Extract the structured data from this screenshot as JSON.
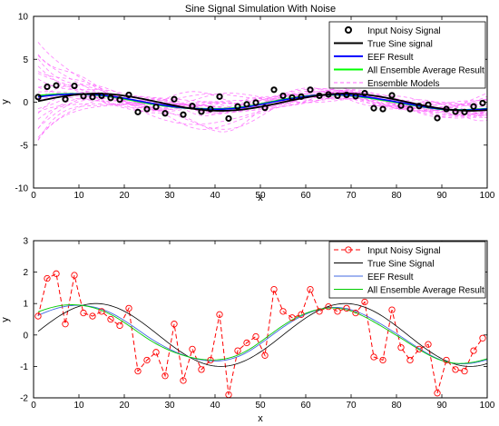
{
  "chart_data": [
    {
      "type": "line",
      "title": "Sine Signal Simulation With Noise",
      "xlabel": "x",
      "ylabel": "y",
      "xlim": [
        0,
        100
      ],
      "ylim": [
        -10,
        10
      ],
      "xticks": [
        0,
        10,
        20,
        30,
        40,
        50,
        60,
        70,
        80,
        90,
        100
      ],
      "yticks": [
        -10,
        -5,
        0,
        5,
        10
      ],
      "grid": false,
      "legend_position": "top-right",
      "sine": {
        "amplitude": 1,
        "period": 55,
        "phase_shift_x": 0
      },
      "noisy_x": [
        1,
        3,
        5,
        7,
        9,
        11,
        13,
        15,
        17,
        19,
        21,
        23,
        25,
        27,
        29,
        31,
        33,
        35,
        37,
        39,
        41,
        43,
        45,
        47,
        49,
        51,
        53,
        55,
        57,
        59,
        61,
        63,
        65,
        67,
        69,
        71,
        73,
        75,
        77,
        79,
        81,
        83,
        85,
        87,
        89,
        91,
        93,
        95,
        97,
        99
      ],
      "noisy_y": [
        0.6,
        1.8,
        1.95,
        0.35,
        1.9,
        0.7,
        0.6,
        0.75,
        0.5,
        0.3,
        0.85,
        -1.15,
        -0.8,
        -0.55,
        -1.3,
        0.35,
        -1.45,
        -0.45,
        -1.1,
        -0.8,
        0.65,
        -1.9,
        -0.5,
        -0.25,
        -0.05,
        -0.65,
        1.45,
        0.75,
        0.55,
        0.65,
        1.45,
        0.75,
        0.9,
        0.75,
        0.85,
        0.7,
        1.05,
        -0.7,
        -0.8,
        0.8,
        -0.4,
        -0.8,
        -0.45,
        -0.3,
        -1.85,
        -0.8,
        -1.1,
        -1.15,
        -0.5,
        -0.1
      ],
      "series": [
        {
          "name": "Input Noisy Signal",
          "color": "#000000",
          "marker": "circle"
        },
        {
          "name": "True Sine signal",
          "color": "#000000"
        },
        {
          "name": "EEF Result",
          "color": "#0000ff"
        },
        {
          "name": "All Ensemble Average Result",
          "color": "#00ff00"
        },
        {
          "name": "Ensemble Models",
          "color": "#ff66ff",
          "style": "dashed"
        }
      ]
    },
    {
      "type": "line",
      "title": "",
      "xlabel": "x",
      "ylabel": "y",
      "xlim": [
        0,
        100
      ],
      "ylim": [
        -2,
        3
      ],
      "xticks": [
        0,
        10,
        20,
        30,
        40,
        50,
        60,
        70,
        80,
        90,
        100
      ],
      "yticks": [
        -2,
        -1,
        0,
        1,
        2,
        3
      ],
      "grid": false,
      "legend_position": "top-right",
      "series": [
        {
          "name": "Input Noisy Signal",
          "color": "#ff0000",
          "marker": "circle",
          "style": "dashed"
        },
        {
          "name": "True Sine Signal",
          "color": "#000000"
        },
        {
          "name": "EEF Result",
          "color": "#4169e1"
        },
        {
          "name": "All Ensemble Average Result",
          "color": "#00cc00"
        }
      ]
    }
  ]
}
